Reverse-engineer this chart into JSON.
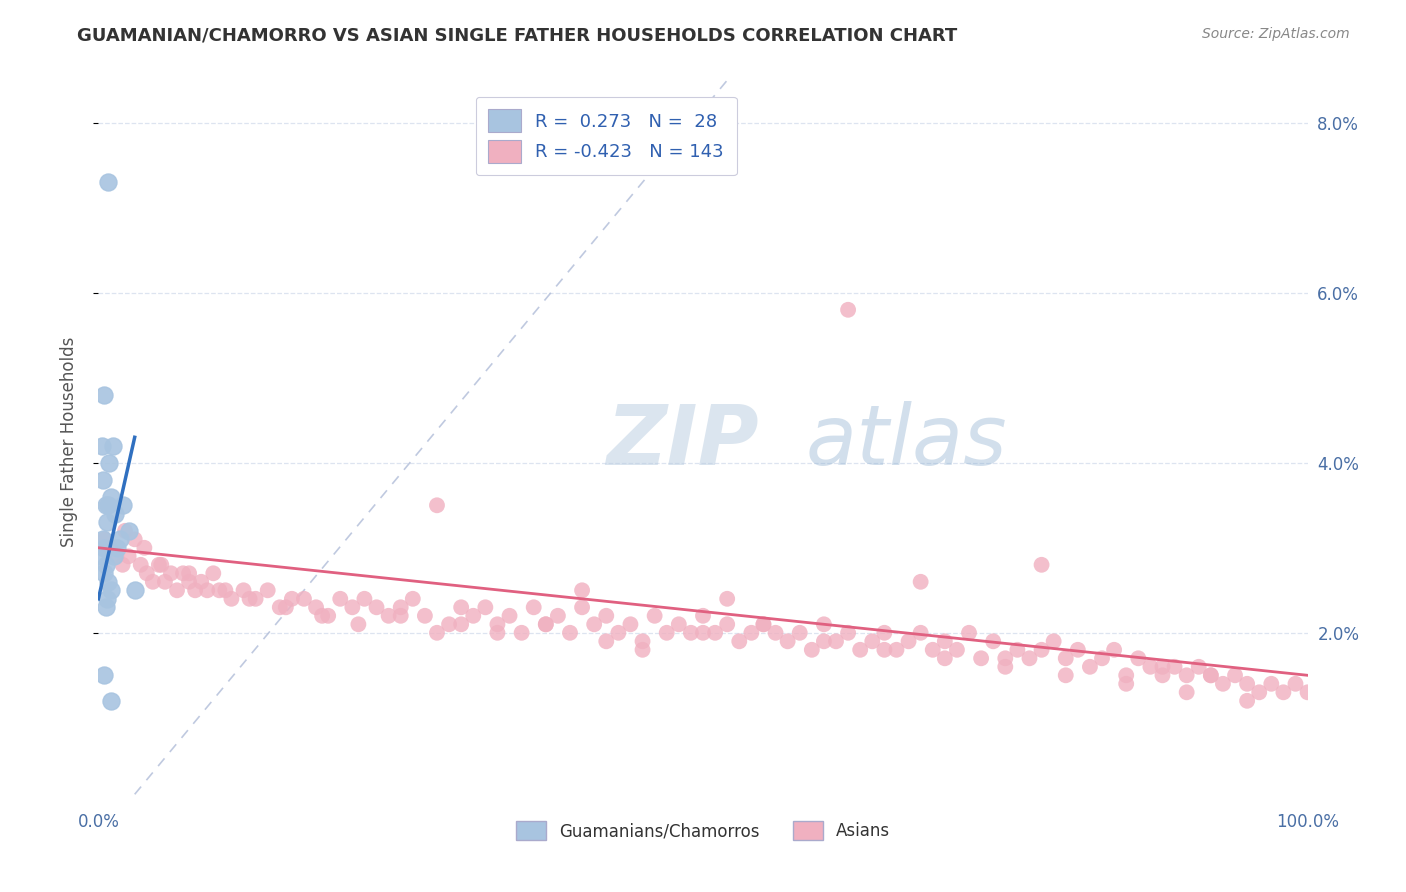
{
  "title": "GUAMANIAN/CHAMORRO VS ASIAN SINGLE FATHER HOUSEHOLDS CORRELATION CHART",
  "source": "Source: ZipAtlas.com",
  "ylabel": "Single Father Households",
  "xlim": [
    0,
    100
  ],
  "ylim": [
    0,
    8.5
  ],
  "xtick_positions": [
    0,
    100
  ],
  "xticklabels": [
    "0.0%",
    "100.0%"
  ],
  "ytick_positions": [
    2,
    4,
    6,
    8
  ],
  "yticklabels": [
    "2.0%",
    "4.0%",
    "6.0%",
    "8.0%"
  ],
  "legend_labels": [
    "Guamanians/Chamorros",
    "Asians"
  ],
  "legend_r_blue": "0.273",
  "legend_n_blue": "28",
  "legend_r_pink": "-0.423",
  "legend_n_pink": "143",
  "blue_dot_color": "#a8c4e0",
  "pink_dot_color": "#f0b0c0",
  "blue_line_color": "#3070c0",
  "pink_line_color": "#e06080",
  "ref_line_color": "#b0bcd8",
  "watermark_color": "#ccd8e8",
  "background_color": "#ffffff",
  "grid_color": "#dde4f0",
  "title_color": "#333333",
  "source_color": "#888888",
  "tick_color": "#4a6fa5",
  "ylabel_color": "#555555",
  "blue_scatter_x": [
    0.8,
    0.5,
    0.3,
    0.4,
    0.6,
    0.7,
    0.5,
    0.4,
    0.3,
    0.6,
    0.5,
    0.8,
    1.0,
    0.7,
    0.6,
    0.9,
    1.2,
    1.0,
    0.8,
    1.5,
    1.3,
    1.8,
    2.0,
    2.5,
    3.0,
    1.4,
    0.5,
    1.0
  ],
  "blue_scatter_y": [
    7.3,
    4.8,
    4.2,
    3.8,
    3.5,
    3.3,
    3.0,
    3.1,
    2.9,
    2.8,
    2.7,
    2.6,
    2.5,
    2.4,
    2.3,
    4.0,
    4.2,
    3.6,
    3.5,
    3.0,
    2.9,
    3.1,
    3.5,
    3.2,
    2.5,
    3.4,
    1.5,
    1.2
  ],
  "pink_scatter_x": [
    0.5,
    1.0,
    1.5,
    2.0,
    2.5,
    3.0,
    3.5,
    4.0,
    4.5,
    5.0,
    5.5,
    6.0,
    6.5,
    7.0,
    7.5,
    8.0,
    8.5,
    9.0,
    9.5,
    10.0,
    11.0,
    12.0,
    13.0,
    14.0,
    15.0,
    16.0,
    17.0,
    18.0,
    19.0,
    20.0,
    21.0,
    22.0,
    23.0,
    24.0,
    25.0,
    26.0,
    27.0,
    28.0,
    29.0,
    30.0,
    31.0,
    32.0,
    33.0,
    34.0,
    35.0,
    36.0,
    37.0,
    38.0,
    39.0,
    40.0,
    41.0,
    42.0,
    43.0,
    44.0,
    45.0,
    46.0,
    47.0,
    48.0,
    49.0,
    50.0,
    51.0,
    52.0,
    53.0,
    54.0,
    55.0,
    56.0,
    57.0,
    58.0,
    59.0,
    60.0,
    61.0,
    62.0,
    63.0,
    64.0,
    65.0,
    66.0,
    67.0,
    68.0,
    69.0,
    70.0,
    71.0,
    72.0,
    73.0,
    74.0,
    75.0,
    76.0,
    77.0,
    78.0,
    79.0,
    80.0,
    81.0,
    82.0,
    83.0,
    84.0,
    85.0,
    86.0,
    87.0,
    88.0,
    89.0,
    90.0,
    91.0,
    92.0,
    93.0,
    94.0,
    95.0,
    96.0,
    97.0,
    98.0,
    99.0,
    100.0,
    2.2,
    3.8,
    5.2,
    7.5,
    10.5,
    12.5,
    15.5,
    18.5,
    21.5,
    25.0,
    30.0,
    33.0,
    37.0,
    42.0,
    45.0,
    50.0,
    55.0,
    60.0,
    65.0,
    70.0,
    75.0,
    80.0,
    85.0,
    90.0,
    95.0,
    28.0,
    62.0,
    78.0,
    88.0,
    40.0,
    52.0,
    68.0,
    92.0
  ],
  "pink_scatter_y": [
    3.1,
    3.0,
    2.9,
    2.8,
    2.9,
    3.1,
    2.8,
    2.7,
    2.6,
    2.8,
    2.6,
    2.7,
    2.5,
    2.7,
    2.6,
    2.5,
    2.6,
    2.5,
    2.7,
    2.5,
    2.4,
    2.5,
    2.4,
    2.5,
    2.3,
    2.4,
    2.4,
    2.3,
    2.2,
    2.4,
    2.3,
    2.4,
    2.3,
    2.2,
    2.3,
    2.4,
    2.2,
    3.5,
    2.1,
    2.3,
    2.2,
    2.3,
    2.1,
    2.2,
    2.0,
    2.3,
    2.1,
    2.2,
    2.0,
    2.3,
    2.1,
    2.2,
    2.0,
    2.1,
    1.9,
    2.2,
    2.0,
    2.1,
    2.0,
    2.2,
    2.0,
    2.1,
    1.9,
    2.0,
    2.1,
    2.0,
    1.9,
    2.0,
    1.8,
    2.1,
    1.9,
    2.0,
    1.8,
    1.9,
    2.0,
    1.8,
    1.9,
    2.0,
    1.8,
    1.9,
    1.8,
    2.0,
    1.7,
    1.9,
    1.7,
    1.8,
    1.7,
    1.8,
    1.9,
    1.7,
    1.8,
    1.6,
    1.7,
    1.8,
    1.5,
    1.7,
    1.6,
    1.5,
    1.6,
    1.5,
    1.6,
    1.5,
    1.4,
    1.5,
    1.4,
    1.3,
    1.4,
    1.3,
    1.4,
    1.3,
    3.2,
    3.0,
    2.8,
    2.7,
    2.5,
    2.4,
    2.3,
    2.2,
    2.1,
    2.2,
    2.1,
    2.0,
    2.1,
    1.9,
    1.8,
    2.0,
    2.1,
    1.9,
    1.8,
    1.7,
    1.6,
    1.5,
    1.4,
    1.3,
    1.2,
    2.0,
    5.8,
    2.8,
    1.6,
    2.5,
    2.4,
    2.6,
    1.5
  ],
  "blue_reg_x0": 0.0,
  "blue_reg_y0": 2.4,
  "blue_reg_x1": 3.0,
  "blue_reg_y1": 4.3,
  "pink_reg_x0": 0.0,
  "pink_reg_y0": 3.0,
  "pink_reg_x1": 100.0,
  "pink_reg_y1": 1.5
}
